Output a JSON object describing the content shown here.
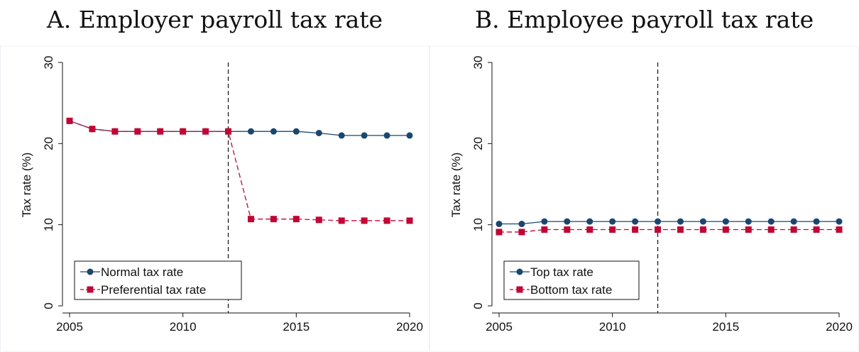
{
  "chart_data": [
    {
      "panel_title": "A. Employer payroll tax rate",
      "type": "line",
      "xlabel": "",
      "ylabel": "Tax rate (%)",
      "xlim": [
        2005,
        2020
      ],
      "ylim": [
        0,
        30
      ],
      "xticks": [
        2005,
        2010,
        2015,
        2020
      ],
      "yticks": [
        0,
        10,
        20,
        30
      ],
      "vline_x": 2012,
      "legend_position": "bottom-left",
      "x": [
        2005,
        2006,
        2007,
        2008,
        2009,
        2010,
        2011,
        2012,
        2013,
        2014,
        2015,
        2016,
        2017,
        2018,
        2019,
        2020
      ],
      "series": [
        {
          "name": "Normal tax rate",
          "color": "#1a476f",
          "marker": "circle",
          "linestyle": "solid",
          "values": [
            22.8,
            21.8,
            21.5,
            21.5,
            21.5,
            21.5,
            21.5,
            21.5,
            21.5,
            21.5,
            21.5,
            21.3,
            21.0,
            21.0,
            21.0,
            21.0
          ]
        },
        {
          "name": "Preferential tax rate",
          "color": "#c10534",
          "marker": "square",
          "linestyle": "dashed",
          "values": [
            22.8,
            21.8,
            21.5,
            21.5,
            21.5,
            21.5,
            21.5,
            21.5,
            10.7,
            10.7,
            10.7,
            10.6,
            10.5,
            10.5,
            10.5,
            10.5
          ]
        }
      ]
    },
    {
      "panel_title": "B. Employee payroll tax rate",
      "type": "line",
      "xlabel": "",
      "ylabel": "Tax rate (%)",
      "xlim": [
        2005,
        2020
      ],
      "ylim": [
        0,
        30
      ],
      "xticks": [
        2005,
        2010,
        2015,
        2020
      ],
      "yticks": [
        0,
        10,
        20,
        30
      ],
      "vline_x": 2012,
      "legend_position": "bottom-left",
      "x": [
        2005,
        2006,
        2007,
        2008,
        2009,
        2010,
        2011,
        2012,
        2013,
        2014,
        2015,
        2016,
        2017,
        2018,
        2019,
        2020
      ],
      "series": [
        {
          "name": "Top tax rate",
          "color": "#1a476f",
          "marker": "circle",
          "linestyle": "solid",
          "values": [
            10.1,
            10.1,
            10.4,
            10.4,
            10.4,
            10.4,
            10.4,
            10.4,
            10.4,
            10.4,
            10.4,
            10.4,
            10.4,
            10.4,
            10.4,
            10.4
          ]
        },
        {
          "name": "Bottom tax rate",
          "color": "#c10534",
          "marker": "square",
          "linestyle": "dashed",
          "values": [
            9.1,
            9.1,
            9.4,
            9.4,
            9.4,
            9.4,
            9.4,
            9.4,
            9.4,
            9.4,
            9.4,
            9.4,
            9.4,
            9.4,
            9.4,
            9.4
          ]
        }
      ]
    }
  ]
}
